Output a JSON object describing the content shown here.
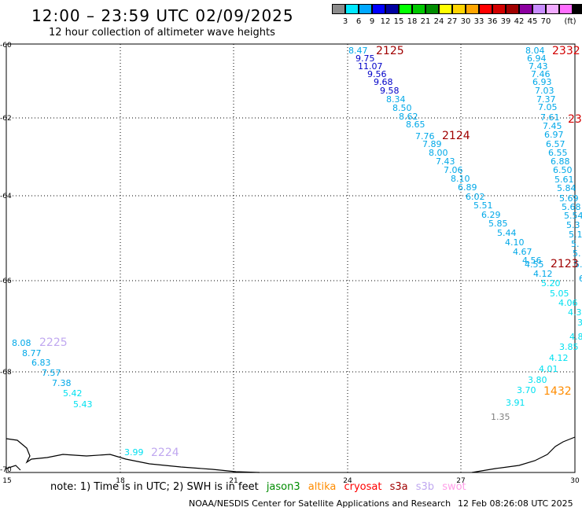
{
  "header": {
    "title": "12:00 – 23:59 UTC 02/09/2025",
    "subtitle": "12 hour collection of altimeter wave heights"
  },
  "legend": {
    "unit": "(ft)",
    "colors": [
      "#8c8c8c",
      "#00e8ff",
      "#00a8ff",
      "#0000ff",
      "#0000a0",
      "#00ff00",
      "#00c800",
      "#008c00",
      "#ffff00",
      "#ffd400",
      "#ffa500",
      "#ff0000",
      "#d20000",
      "#a00000",
      "#8c00a0",
      "#c88cff",
      "#f0aaff",
      "#ff6eff",
      "#000000"
    ],
    "ticks": [
      "3",
      "6",
      "9",
      "12",
      "15",
      "18",
      "21",
      "24",
      "27",
      "30",
      "33",
      "36",
      "39",
      "42",
      "45",
      "70"
    ]
  },
  "axes": {
    "x_ticks": [
      "15",
      "18",
      "21",
      "24",
      "27",
      "30"
    ],
    "y_ticks": [
      "-60",
      "-62",
      "-64",
      "-66",
      "-68",
      "-70"
    ]
  },
  "passes": [
    {
      "label": "2125",
      "color": "#a00000",
      "values": [
        "8.47",
        "9.75",
        "11.07",
        "9.56",
        "9.68",
        "9.58",
        "8.34",
        "8.50",
        "8.62",
        "8.65",
        "7.76",
        "7.89"
      ]
    },
    {
      "label": "2124",
      "color": "#a00000",
      "values": [
        "8.00",
        "7.43",
        "7.06",
        "8.10",
        "6.89",
        "6.02",
        "5.51",
        "6.29",
        "5.85",
        "5.44",
        "4.10",
        "4.67",
        "4.56",
        "4.55"
      ]
    },
    {
      "label": "2332",
      "color": "#d20000",
      "values": [
        "8.04",
        "6.94",
        "7.43",
        "7.46",
        "6.93",
        "7.03",
        "7.37",
        "7.05",
        "7.61",
        "7.45",
        "6.97",
        "6.57",
        "6.55",
        "6.88",
        "6.50",
        "5.61",
        "5.84",
        "5.69",
        "5.68",
        "5.54",
        "5.3",
        "5.1",
        "5.",
        "5.",
        "5.",
        "6."
      ]
    },
    {
      "label": "23",
      "color": "#d20000",
      "values": []
    },
    {
      "label": "2123",
      "color": "#a00000",
      "values": [
        "4.12",
        "5.20",
        "5.05",
        "4.06",
        "4.3",
        "3.",
        "4.8",
        "3.85",
        "4.12",
        "4.01",
        "3.80",
        "3.70",
        "3.91"
      ]
    },
    {
      "label": "1432",
      "color": "#ff8c00",
      "values": []
    },
    {
      "label": "2225",
      "color": "#c0a8f0",
      "values": [
        "8.08",
        "8.77",
        "6.83",
        "7.57",
        "7.38",
        "5.42",
        "5.43"
      ]
    },
    {
      "label": "2224",
      "color": "#c0a8f0",
      "values": [
        "3.99"
      ]
    },
    {
      "label": "",
      "color": "#808080",
      "values": [
        "1.35"
      ]
    }
  ],
  "note": {
    "text": "note: 1) Time is in UTC; 2) SWH is in feet",
    "satellites": [
      {
        "name": "jason3",
        "color": "#008c00"
      },
      {
        "name": "altika",
        "color": "#ff8c00"
      },
      {
        "name": "cryosat",
        "color": "#ff0000"
      },
      {
        "name": "s3a",
        "color": "#a00000"
      },
      {
        "name": "s3b",
        "color": "#c0a8f0"
      },
      {
        "name": "swot",
        "color": "#ff9ee8"
      }
    ]
  },
  "footer": {
    "agency": "NOAA/NESDIS Center for Satellite Applications and Research",
    "timestamp": "12 Feb 08:26:08 UTC 2025"
  }
}
